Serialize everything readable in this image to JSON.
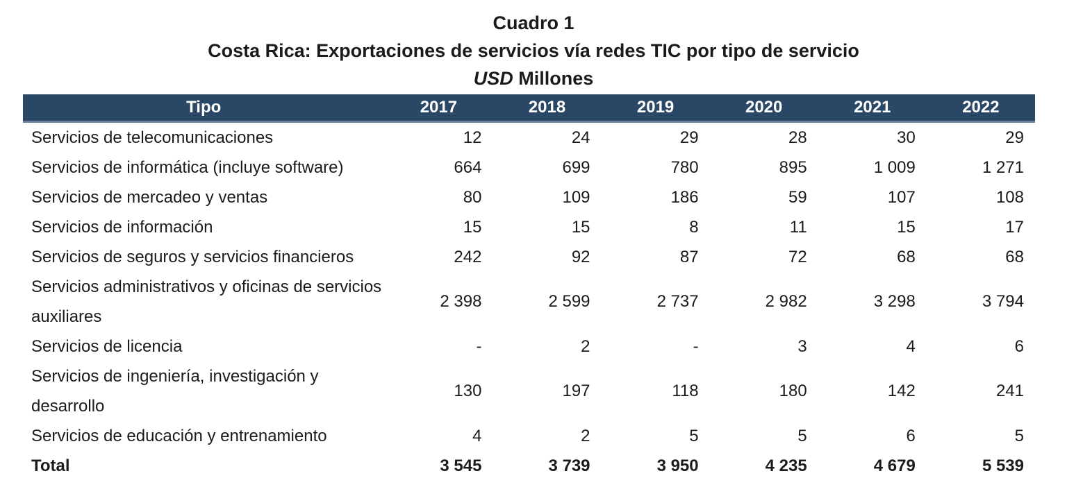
{
  "title": {
    "line1": "Cuadro 1",
    "line2": "Costa Rica: Exportaciones de servicios vía redes TIC por tipo de servicio",
    "line3_italic": "USD",
    "line3_rest": "Millones"
  },
  "colors": {
    "header_bg": "#2A4765",
    "header_text": "#FFFFFF",
    "header_bottom_line": "#6D809D",
    "body_text": "#1B1B1B",
    "page_bg": "#FFFFFF"
  },
  "table": {
    "header": {
      "tipo": "Tipo",
      "years": [
        "2017",
        "2018",
        "2019",
        "2020",
        "2021",
        "2022"
      ]
    },
    "rows": [
      {
        "tipo": "Servicios de telecomunicaciones",
        "values": [
          "12",
          "24",
          "29",
          "28",
          "30",
          "29"
        ]
      },
      {
        "tipo": "Servicios de informática (incluye software)",
        "values": [
          "664",
          "699",
          "780",
          "895",
          "1 009",
          "1 271"
        ]
      },
      {
        "tipo": "Servicios de mercadeo y ventas",
        "values": [
          "80",
          "109",
          "186",
          "59",
          "107",
          "108"
        ]
      },
      {
        "tipo": "Servicios de información",
        "values": [
          "15",
          "15",
          "8",
          "11",
          "15",
          "17"
        ]
      },
      {
        "tipo": "Servicios de seguros y servicios financieros",
        "values": [
          "242",
          "92",
          "87",
          "72",
          "68",
          "68"
        ]
      },
      {
        "tipo": "Servicios administrativos y oficinas de servicios auxiliares",
        "values": [
          "2 398",
          "2 599",
          "2 737",
          "2 982",
          "3 298",
          "3 794"
        ]
      },
      {
        "tipo": "Servicios de licencia",
        "values": [
          "-",
          "2",
          "-",
          "3",
          "4",
          "6"
        ]
      },
      {
        "tipo": "Servicios de ingeniería, investigación y desarrollo",
        "values": [
          "130",
          "197",
          "118",
          "180",
          "142",
          "241"
        ]
      },
      {
        "tipo": "Servicios de educación y entrenamiento",
        "values": [
          "4",
          "2",
          "5",
          "5",
          "6",
          "5"
        ]
      }
    ],
    "total": {
      "tipo": "Total",
      "values": [
        "3 545",
        "3 739",
        "3 950",
        "4 235",
        "4 679",
        "5 539"
      ]
    }
  }
}
